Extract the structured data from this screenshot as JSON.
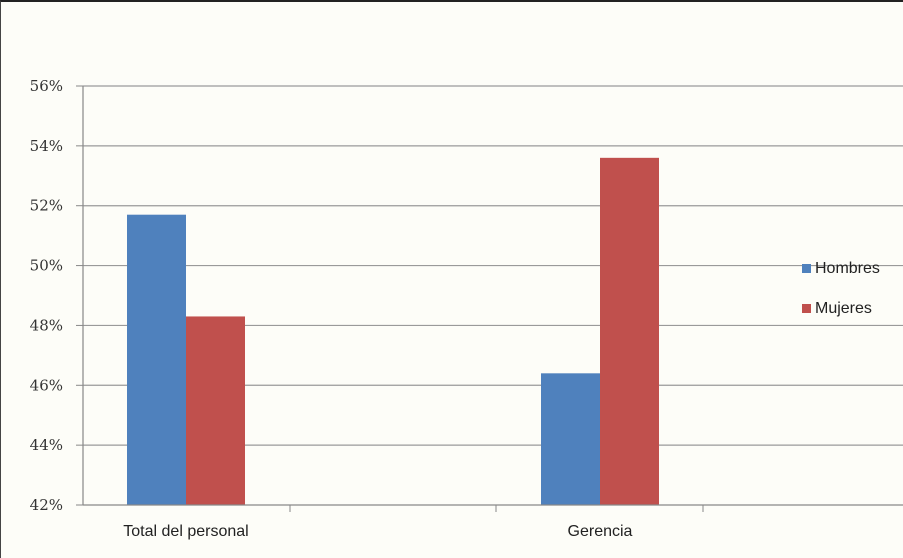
{
  "chart_data": {
    "type": "bar",
    "title": "",
    "xlabel": "",
    "ylabel": "",
    "categories": [
      "Total del personal",
      "Gerencia"
    ],
    "series": [
      {
        "name": "Hombres",
        "values": [
          51.7,
          46.4
        ],
        "color": "#4f81bd"
      },
      {
        "name": "Mujeres",
        "values": [
          48.3,
          53.6
        ],
        "color": "#c0504d"
      }
    ],
    "ylim": [
      42,
      56
    ],
    "yticks": [
      "42%",
      "44%",
      "46%",
      "48%",
      "50%",
      "52%",
      "54%",
      "56%"
    ],
    "grid": true,
    "legend_position": "right"
  }
}
